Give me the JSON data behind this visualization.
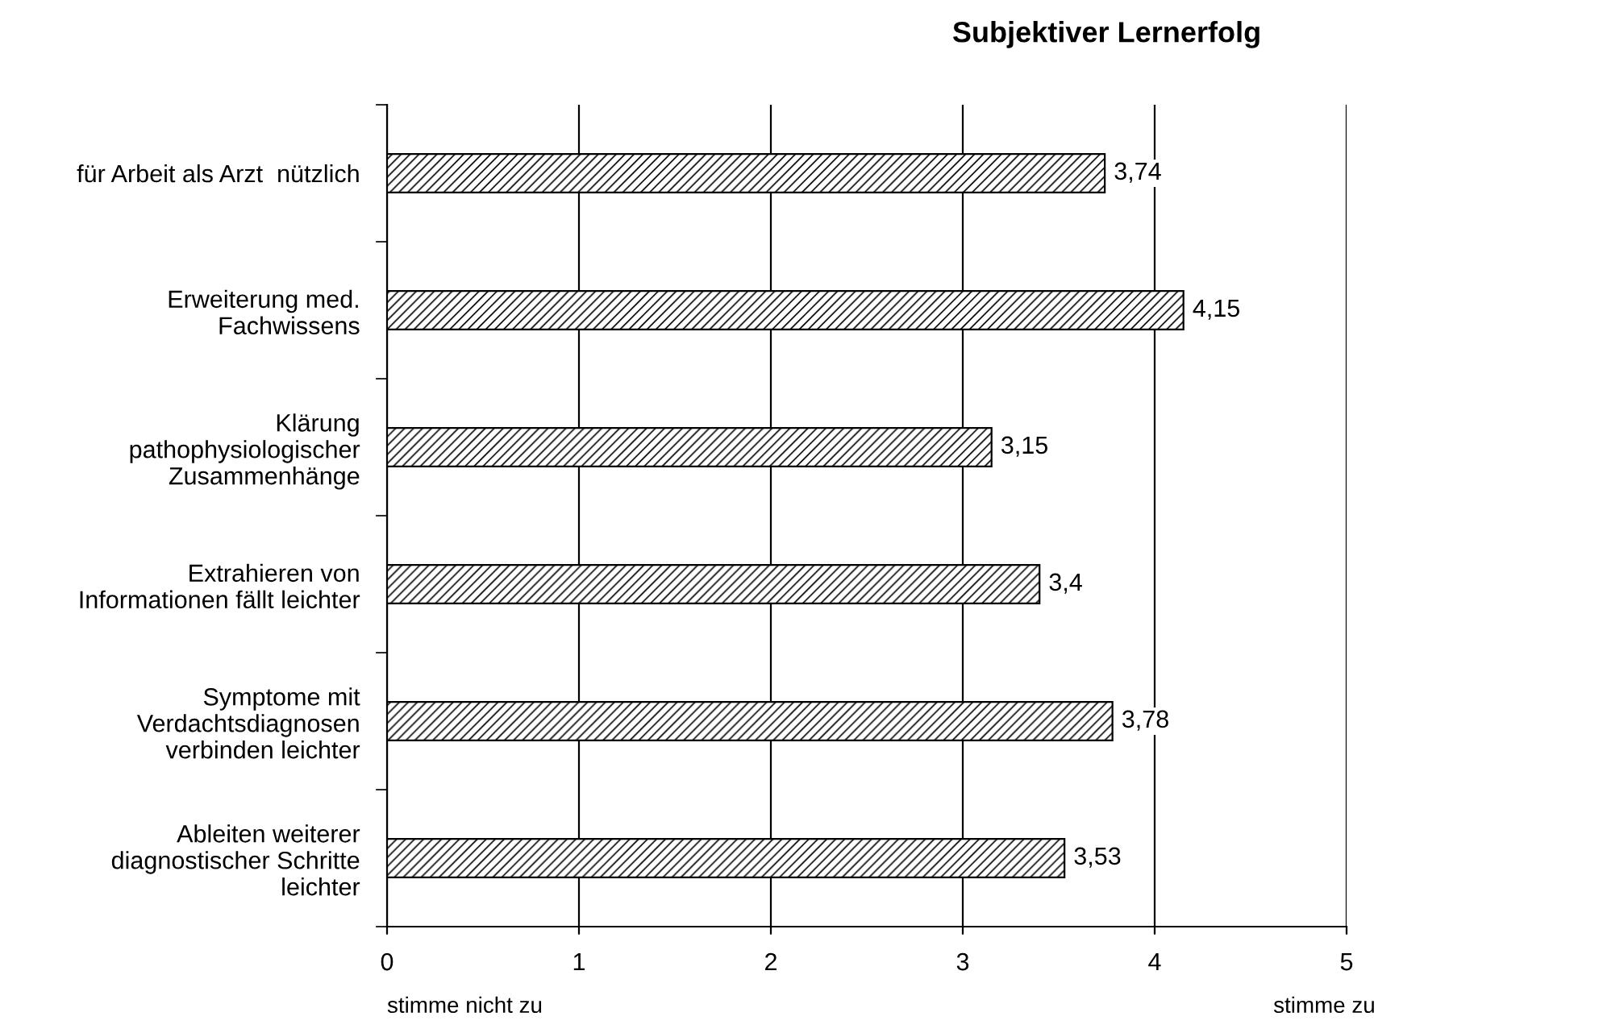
{
  "chart_data": {
    "type": "bar",
    "orientation": "horizontal",
    "title": "Subjektiver Lernerfolg",
    "categories": [
      "für Arbeit als Arzt  nützlich",
      "Erweiterung med.\nFachwissens",
      "Klärung\npathophysiologischer\nZusammenhänge",
      "Extrahieren von\nInformationen fällt leichter",
      "Symptome mit\nVerdachtsdiagnosen\nverbinden leichter",
      "Ableiten weiterer\ndiagnostischer Schritte\nleichter"
    ],
    "values": [
      3.74,
      4.15,
      3.15,
      3.4,
      3.78,
      3.53
    ],
    "value_labels": [
      "3,74",
      "4,15",
      "3,15",
      "3,4",
      "3,78",
      "3,53"
    ],
    "color": "#000000",
    "xlim": [
      0,
      5
    ],
    "xticks": [
      0,
      1,
      2,
      3,
      4,
      5
    ],
    "grid": "x",
    "annotations": [
      "stimme nicht zu",
      "stimme zu"
    ]
  }
}
